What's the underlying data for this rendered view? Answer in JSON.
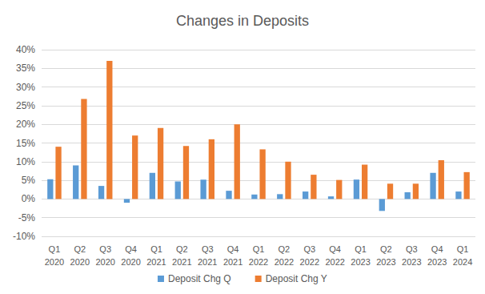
{
  "chart_data": {
    "type": "bar",
    "title": "Changes in Deposits",
    "categories": [
      "Q1\n2020",
      "Q2\n2020",
      "Q3\n2020",
      "Q4\n2020",
      "Q1\n2021",
      "Q2\n2021",
      "Q3\n2021",
      "Q4\n2021",
      "Q1\n2022",
      "Q2\n2022",
      "Q3\n2022",
      "Q4\n2022",
      "Q1\n2023",
      "Q2\n2023",
      "Q3\n2023",
      "Q4\n2023",
      "Q1\n2024"
    ],
    "series": [
      {
        "name": "Deposit Chg Q",
        "color": "#5b9bd5",
        "values": [
          5.3,
          9,
          3.5,
          -1,
          7,
          4.7,
          5.2,
          2.2,
          1.2,
          1.3,
          2,
          0.7,
          5.2,
          -3.2,
          1.8,
          7,
          2
        ]
      },
      {
        "name": "Deposit Chg Y",
        "color": "#ed7d31",
        "values": [
          14,
          26.8,
          37,
          17,
          19,
          14.2,
          16,
          20,
          13.3,
          10,
          6.5,
          5.1,
          9.2,
          4.1,
          4.1,
          10.4,
          7.2
        ]
      }
    ],
    "ylim": [
      -10,
      40
    ],
    "yticks": [
      {
        "value": -10,
        "label": "-10%"
      },
      {
        "value": -5,
        "label": "-5%"
      },
      {
        "value": 0,
        "label": "0%"
      },
      {
        "value": 5,
        "label": "5%"
      },
      {
        "value": 10,
        "label": "10%"
      },
      {
        "value": 15,
        "label": "15%"
      },
      {
        "value": 20,
        "label": "20%"
      },
      {
        "value": 25,
        "label": "25%"
      },
      {
        "value": 30,
        "label": "30%"
      },
      {
        "value": 35,
        "label": "35%"
      },
      {
        "value": 40,
        "label": "40%"
      }
    ],
    "grid": true,
    "legend": "bottom"
  }
}
